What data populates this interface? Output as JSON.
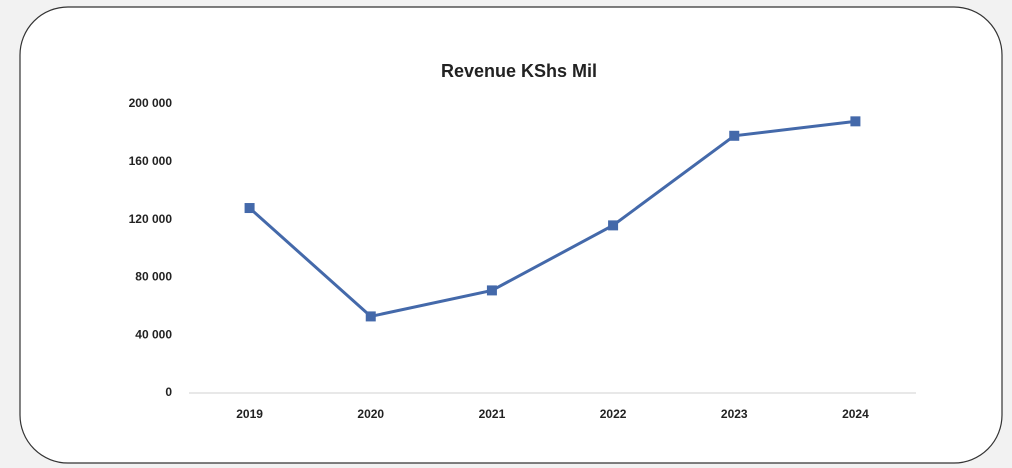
{
  "chart_data": {
    "type": "line",
    "title": "Revenue KShs Mil",
    "categories": [
      "2019",
      "2020",
      "2021",
      "2022",
      "2023",
      "2024"
    ],
    "series": [
      {
        "name": "Revenue KShs Mil",
        "color": "#4469aa",
        "values": [
          128000,
          53000,
          71000,
          116000,
          178000,
          188000
        ]
      }
    ],
    "ylim": [
      0,
      200000
    ],
    "yticks": [
      0,
      {
        "value": 40000,
        "label": "40 000"
      },
      {
        "value": 80000,
        "label": "80 000"
      },
      {
        "value": 120000,
        "label": "120 000"
      },
      {
        "value": 160000,
        "label": "160 000"
      },
      {
        "value": 200000,
        "label": "200 000"
      }
    ],
    "grid": false
  }
}
